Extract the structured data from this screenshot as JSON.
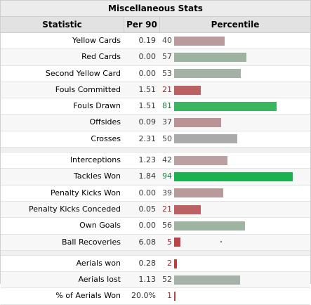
{
  "title": "Miscellaneous Stats",
  "headers": {
    "statistic": "Statistic",
    "per90": "Per 90",
    "percentile": "Percentile"
  },
  "groups": [
    [
      {
        "stat": "Yellow Cards",
        "per90": "0.19",
        "pct": 40,
        "color": "#b99b9d"
      },
      {
        "stat": "Red Cards",
        "per90": "0.00",
        "pct": 57,
        "color": "#9db39f"
      },
      {
        "stat": "Second Yellow Card",
        "per90": "0.00",
        "pct": 53,
        "color": "#a4b2a6"
      },
      {
        "stat": "Fouls Committed",
        "per90": "1.51",
        "pct": 21,
        "color": "#bc6163"
      },
      {
        "stat": "Fouls Drawn",
        "per90": "1.51",
        "pct": 81,
        "color": "#3bb55f"
      },
      {
        "stat": "Offsides",
        "per90": "0.09",
        "pct": 37,
        "color": "#b99395"
      },
      {
        "stat": "Crosses",
        "per90": "2.31",
        "pct": 50,
        "color": "#aaaaaa"
      }
    ],
    [
      {
        "stat": "Interceptions",
        "per90": "1.23",
        "pct": 42,
        "color": "#bba0a2"
      },
      {
        "stat": "Tackles Won",
        "per90": "1.84",
        "pct": 94,
        "color": "#19b24e"
      },
      {
        "stat": "Penalty Kicks Won",
        "per90": "0.00",
        "pct": 39,
        "color": "#b99a9b"
      },
      {
        "stat": "Penalty Kicks Conceded",
        "per90": "0.05",
        "pct": 21,
        "color": "#bc6163"
      },
      {
        "stat": "Own Goals",
        "per90": "0.00",
        "pct": 56,
        "color": "#9eb4a1"
      },
      {
        "stat": "Ball Recoveries",
        "per90": "6.08",
        "pct": 5,
        "color": "#b94347"
      }
    ],
    [
      {
        "stat": "Aerials won",
        "per90": "0.28",
        "pct": 2,
        "color": "#b84144"
      },
      {
        "stat": "Aerials lost",
        "per90": "1.13",
        "pct": 52,
        "color": "#a5b2a7"
      },
      {
        "stat": "% of Aerials Won",
        "per90": "20.0%",
        "pct": 1,
        "color": "#b84144"
      }
    ]
  ]
}
